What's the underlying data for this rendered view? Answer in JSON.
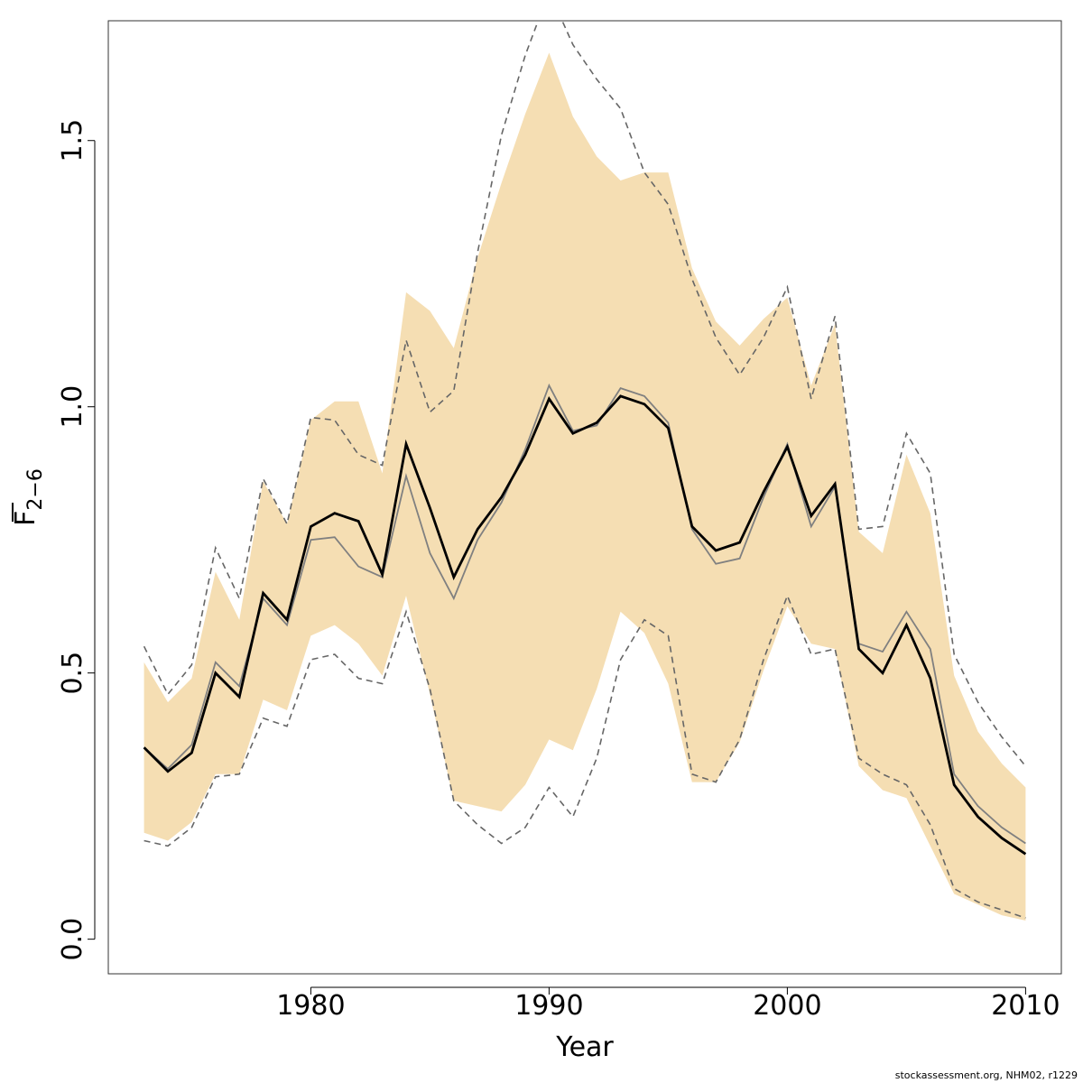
{
  "chart_data": {
    "type": "line",
    "xlabel": "Year",
    "ylabel": "F",
    "ylabel_subscript": "2−6",
    "xlim": [
      1971.5,
      2011.5
    ],
    "ylim": [
      -0.065,
      1.725
    ],
    "x_ticks": [
      1980,
      1990,
      2000,
      2010
    ],
    "y_ticks": [
      0.0,
      0.5,
      1.0,
      1.5
    ],
    "y_tick_labels": [
      "0.0",
      "0.5",
      "1.0",
      "1.5"
    ],
    "grid": false,
    "legend": "none",
    "colors": {
      "band": "#F5DEB3",
      "estimate": "#000000",
      "previous": "#808080",
      "previous_ci": "#666666"
    },
    "x": [
      1973,
      1974,
      1975,
      1976,
      1977,
      1978,
      1979,
      1980,
      1981,
      1982,
      1983,
      1984,
      1985,
      1986,
      1987,
      1988,
      1989,
      1990,
      1991,
      1992,
      1993,
      1994,
      1995,
      1996,
      1997,
      1998,
      1999,
      2000,
      2001,
      2002,
      2003,
      2004,
      2005,
      2006,
      2007,
      2008,
      2009,
      2010
    ],
    "series": [
      {
        "role": "estimate",
        "values": [
          0.36,
          0.315,
          0.35,
          0.5,
          0.455,
          0.65,
          0.6,
          0.775,
          0.8,
          0.785,
          0.685,
          0.93,
          0.81,
          0.68,
          0.77,
          0.83,
          0.91,
          1.015,
          0.95,
          0.97,
          1.02,
          1.005,
          0.96,
          0.775,
          0.73,
          0.745,
          0.84,
          0.925,
          0.795,
          0.855,
          0.545,
          0.5,
          0.59,
          0.49,
          0.29,
          0.23,
          0.19,
          0.16
        ]
      },
      {
        "role": "ci_lower",
        "values": [
          0.2,
          0.185,
          0.22,
          0.31,
          0.31,
          0.45,
          0.43,
          0.57,
          0.59,
          0.555,
          0.495,
          0.645,
          0.46,
          0.26,
          0.25,
          0.24,
          0.29,
          0.375,
          0.355,
          0.47,
          0.615,
          0.575,
          0.48,
          0.295,
          0.295,
          0.37,
          0.505,
          0.625,
          0.555,
          0.545,
          0.325,
          0.28,
          0.265,
          0.175,
          0.085,
          0.065,
          0.045,
          0.035
        ]
      },
      {
        "role": "ci_upper",
        "values": [
          0.52,
          0.445,
          0.49,
          0.69,
          0.6,
          0.86,
          0.78,
          0.975,
          1.01,
          1.01,
          0.875,
          1.215,
          1.18,
          1.11,
          1.28,
          1.42,
          1.55,
          1.665,
          1.545,
          1.47,
          1.425,
          1.44,
          1.44,
          1.26,
          1.16,
          1.115,
          1.165,
          1.205,
          1.04,
          1.155,
          0.765,
          0.725,
          0.91,
          0.8,
          0.495,
          0.39,
          0.33,
          0.285
        ]
      },
      {
        "role": "previous",
        "values": [
          0.36,
          0.32,
          0.365,
          0.52,
          0.475,
          0.64,
          0.59,
          0.75,
          0.755,
          0.7,
          0.68,
          0.87,
          0.725,
          0.64,
          0.75,
          0.82,
          0.92,
          1.04,
          0.955,
          0.965,
          1.035,
          1.02,
          0.97,
          0.77,
          0.705,
          0.715,
          0.83,
          0.93,
          0.775,
          0.85,
          0.555,
          0.54,
          0.615,
          0.545,
          0.31,
          0.25,
          0.21,
          0.18
        ]
      },
      {
        "role": "previous_lower",
        "values": [
          0.185,
          0.175,
          0.21,
          0.305,
          0.31,
          0.415,
          0.4,
          0.525,
          0.535,
          0.49,
          0.48,
          0.615,
          0.47,
          0.26,
          0.215,
          0.18,
          0.21,
          0.285,
          0.23,
          0.34,
          0.525,
          0.6,
          0.57,
          0.31,
          0.295,
          0.375,
          0.525,
          0.645,
          0.535,
          0.545,
          0.34,
          0.31,
          0.29,
          0.215,
          0.095,
          0.07,
          0.055,
          0.04
        ]
      },
      {
        "role": "previous_upper",
        "values": [
          0.55,
          0.46,
          0.515,
          0.735,
          0.64,
          0.865,
          0.78,
          0.98,
          0.975,
          0.91,
          0.89,
          1.125,
          0.99,
          1.03,
          1.29,
          1.51,
          1.66,
          1.78,
          1.68,
          1.615,
          1.56,
          1.44,
          1.38,
          1.24,
          1.13,
          1.06,
          1.13,
          1.225,
          1.015,
          1.17,
          0.77,
          0.775,
          0.95,
          0.875,
          0.535,
          0.445,
          0.38,
          0.325
        ]
      }
    ]
  },
  "footer": "stockassessment.org, NHM02, r1229"
}
